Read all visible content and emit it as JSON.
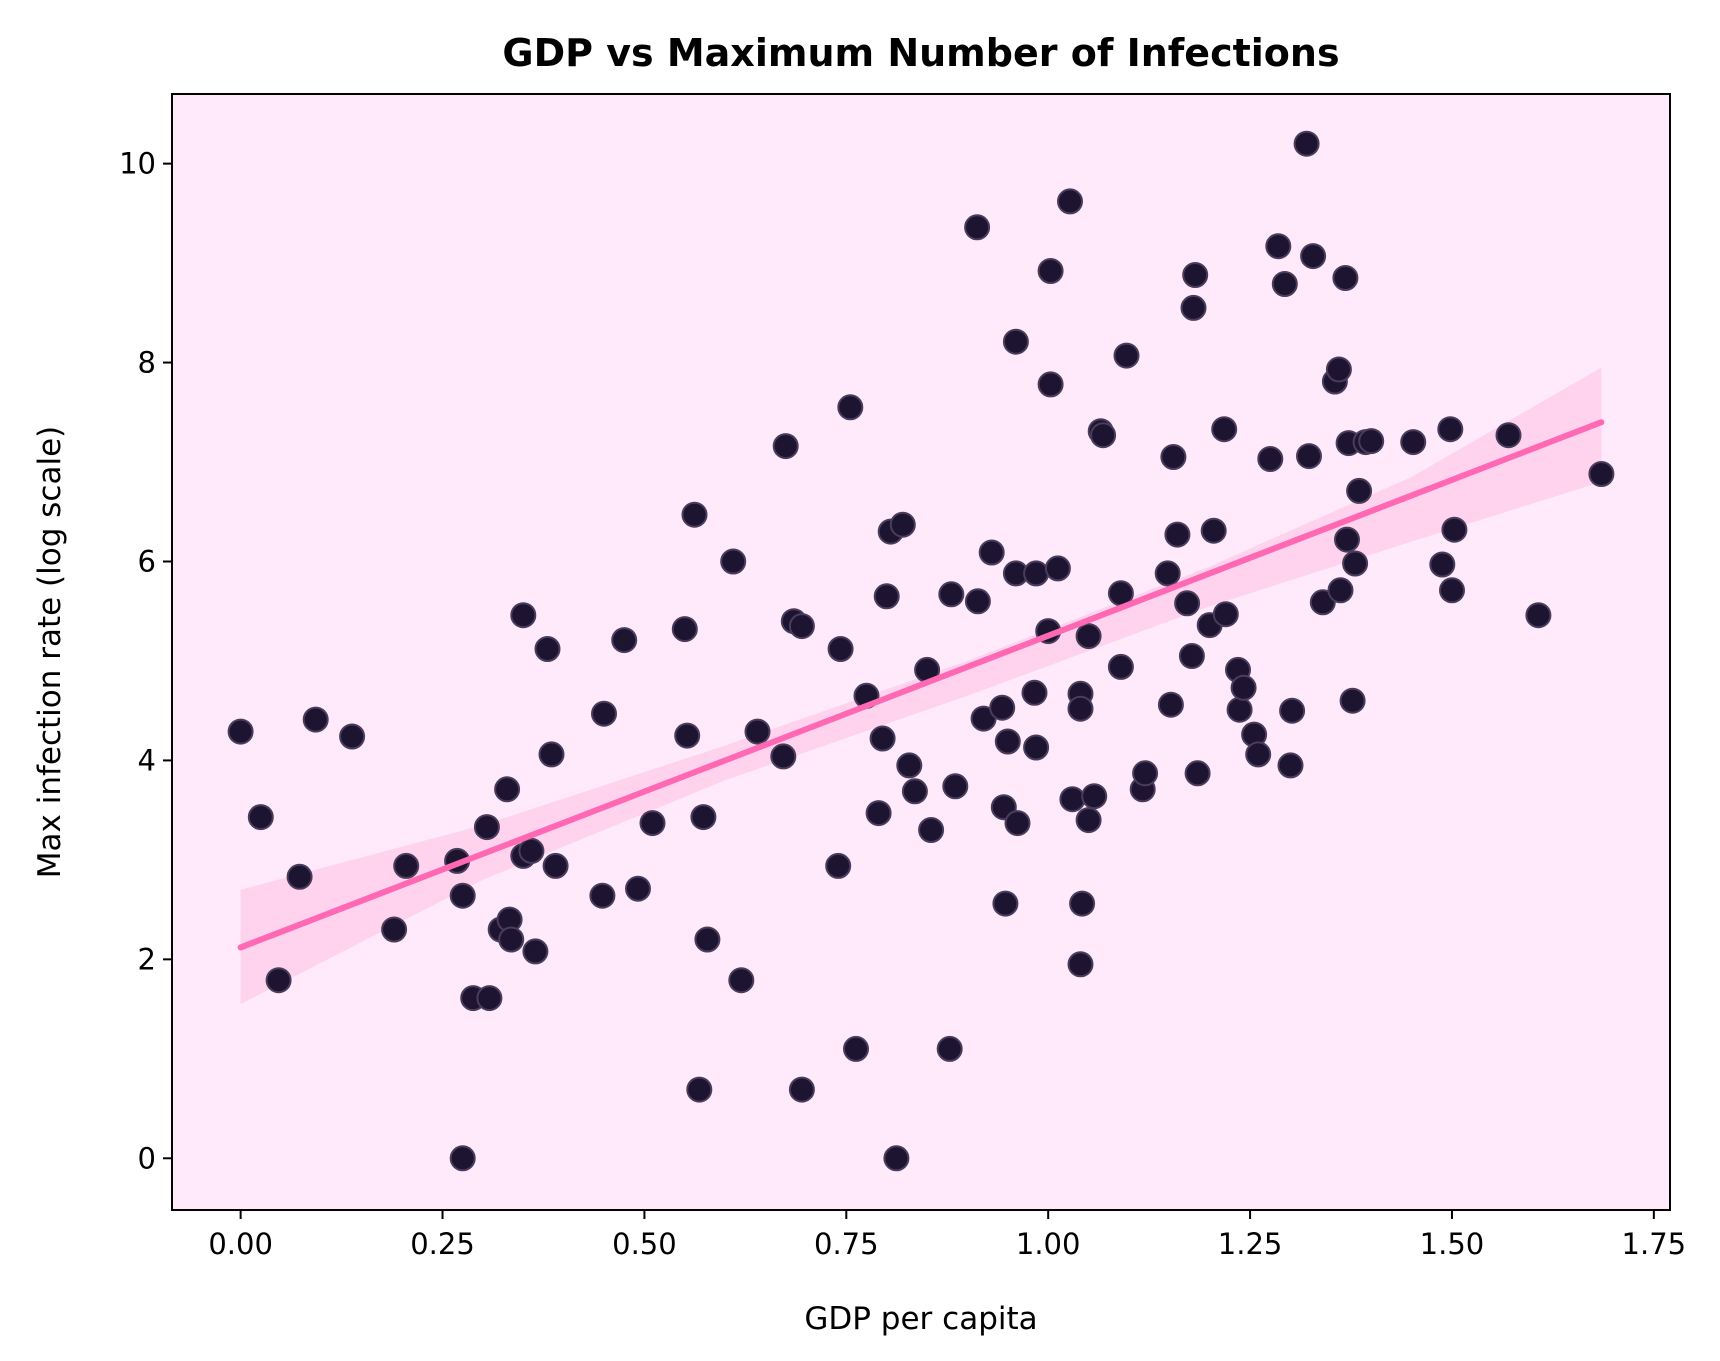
{
  "chart_data": {
    "type": "scatter",
    "title": "GDP vs Maximum Number of Infections",
    "xlabel": "GDP per capita",
    "ylabel": "Max infection rate (log scale)",
    "xlim": [
      -0.085,
      1.77
    ],
    "ylim": [
      -0.52,
      10.7
    ],
    "xticks": [
      0.0,
      0.25,
      0.5,
      0.75,
      1.0,
      1.25,
      1.5,
      1.75
    ],
    "xtick_labels": [
      "0.00",
      "0.25",
      "0.50",
      "0.75",
      "1.00",
      "1.25",
      "1.50",
      "1.75"
    ],
    "yticks": [
      0,
      2,
      4,
      6,
      8,
      10
    ],
    "ytick_labels": [
      "0",
      "2",
      "4",
      "6",
      "8",
      "10"
    ],
    "grid": false,
    "colors": {
      "background": "#ffeafc",
      "point": "#1c1430",
      "point_edge": "#4a3d5c",
      "regression_line": "#ff69b4",
      "confidence_band": "#ffb7de"
    },
    "regression": {
      "x": [
        0.0,
        1.685
      ],
      "y": [
        2.12,
        7.4
      ]
    },
    "confidence_band": [
      {
        "x": 0.0,
        "lower": 1.55,
        "upper": 2.7
      },
      {
        "x": 0.3,
        "lower": 2.8,
        "upper": 3.35
      },
      {
        "x": 0.6,
        "lower": 3.8,
        "upper": 4.15
      },
      {
        "x": 0.9,
        "lower": 4.65,
        "upper": 5.0
      },
      {
        "x": 1.2,
        "lower": 5.55,
        "upper": 5.95
      },
      {
        "x": 1.45,
        "lower": 6.2,
        "upper": 6.85
      },
      {
        "x": 1.685,
        "lower": 6.8,
        "upper": 7.95
      }
    ],
    "points": [
      {
        "x": 0.0,
        "y": 4.29
      },
      {
        "x": 0.025,
        "y": 3.43
      },
      {
        "x": 0.047,
        "y": 1.79
      },
      {
        "x": 0.073,
        "y": 2.83
      },
      {
        "x": 0.093,
        "y": 4.41
      },
      {
        "x": 0.138,
        "y": 4.24
      },
      {
        "x": 0.19,
        "y": 2.3
      },
      {
        "x": 0.205,
        "y": 2.94
      },
      {
        "x": 0.268,
        "y": 2.99
      },
      {
        "x": 0.275,
        "y": 2.64
      },
      {
        "x": 0.275,
        "y": 0.0
      },
      {
        "x": 0.288,
        "y": 1.61
      },
      {
        "x": 0.305,
        "y": 3.33
      },
      {
        "x": 0.308,
        "y": 1.61
      },
      {
        "x": 0.322,
        "y": 2.3
      },
      {
        "x": 0.33,
        "y": 3.71
      },
      {
        "x": 0.333,
        "y": 2.4
      },
      {
        "x": 0.335,
        "y": 2.2
      },
      {
        "x": 0.35,
        "y": 5.46
      },
      {
        "x": 0.35,
        "y": 3.04
      },
      {
        "x": 0.36,
        "y": 3.09
      },
      {
        "x": 0.365,
        "y": 2.08
      },
      {
        "x": 0.38,
        "y": 5.12
      },
      {
        "x": 0.385,
        "y": 4.06
      },
      {
        "x": 0.39,
        "y": 2.94
      },
      {
        "x": 0.448,
        "y": 2.64
      },
      {
        "x": 0.45,
        "y": 4.47
      },
      {
        "x": 0.475,
        "y": 5.21
      },
      {
        "x": 0.492,
        "y": 2.71
      },
      {
        "x": 0.51,
        "y": 3.37
      },
      {
        "x": 0.55,
        "y": 5.32
      },
      {
        "x": 0.553,
        "y": 4.25
      },
      {
        "x": 0.562,
        "y": 6.47
      },
      {
        "x": 0.568,
        "y": 0.69
      },
      {
        "x": 0.573,
        "y": 3.43
      },
      {
        "x": 0.578,
        "y": 2.2
      },
      {
        "x": 0.61,
        "y": 6.0
      },
      {
        "x": 0.62,
        "y": 1.79
      },
      {
        "x": 0.64,
        "y": 4.29
      },
      {
        "x": 0.672,
        "y": 4.04
      },
      {
        "x": 0.675,
        "y": 7.16
      },
      {
        "x": 0.685,
        "y": 5.4
      },
      {
        "x": 0.695,
        "y": 5.35
      },
      {
        "x": 0.695,
        "y": 0.69
      },
      {
        "x": 0.74,
        "y": 2.94
      },
      {
        "x": 0.743,
        "y": 5.12
      },
      {
        "x": 0.755,
        "y": 7.55
      },
      {
        "x": 0.762,
        "y": 1.1
      },
      {
        "x": 0.775,
        "y": 4.65
      },
      {
        "x": 0.79,
        "y": 3.47
      },
      {
        "x": 0.795,
        "y": 4.22
      },
      {
        "x": 0.8,
        "y": 5.65
      },
      {
        "x": 0.805,
        "y": 6.3
      },
      {
        "x": 0.812,
        "y": 0.0
      },
      {
        "x": 0.82,
        "y": 6.37
      },
      {
        "x": 0.828,
        "y": 3.95
      },
      {
        "x": 0.835,
        "y": 3.69
      },
      {
        "x": 0.85,
        "y": 4.91
      },
      {
        "x": 0.855,
        "y": 3.3
      },
      {
        "x": 0.878,
        "y": 1.1
      },
      {
        "x": 0.88,
        "y": 5.67
      },
      {
        "x": 0.885,
        "y": 3.74
      },
      {
        "x": 0.912,
        "y": 9.36
      },
      {
        "x": 0.913,
        "y": 5.6
      },
      {
        "x": 0.92,
        "y": 4.42
      },
      {
        "x": 0.93,
        "y": 6.09
      },
      {
        "x": 0.943,
        "y": 4.53
      },
      {
        "x": 0.945,
        "y": 3.53
      },
      {
        "x": 0.947,
        "y": 2.56
      },
      {
        "x": 0.95,
        "y": 4.19
      },
      {
        "x": 0.96,
        "y": 8.21
      },
      {
        "x": 0.96,
        "y": 5.88
      },
      {
        "x": 0.962,
        "y": 3.37
      },
      {
        "x": 0.983,
        "y": 4.68
      },
      {
        "x": 0.985,
        "y": 5.88
      },
      {
        "x": 0.985,
        "y": 4.13
      },
      {
        "x": 1.0,
        "y": 5.3
      },
      {
        "x": 1.003,
        "y": 8.92
      },
      {
        "x": 1.003,
        "y": 7.78
      },
      {
        "x": 1.012,
        "y": 5.93
      },
      {
        "x": 1.027,
        "y": 9.62
      },
      {
        "x": 1.03,
        "y": 3.61
      },
      {
        "x": 1.04,
        "y": 1.95
      },
      {
        "x": 1.04,
        "y": 4.67
      },
      {
        "x": 1.04,
        "y": 4.52
      },
      {
        "x": 1.042,
        "y": 2.56
      },
      {
        "x": 1.05,
        "y": 5.25
      },
      {
        "x": 1.05,
        "y": 3.4
      },
      {
        "x": 1.057,
        "y": 3.64
      },
      {
        "x": 1.065,
        "y": 7.31
      },
      {
        "x": 1.068,
        "y": 7.27
      },
      {
        "x": 1.09,
        "y": 5.68
      },
      {
        "x": 1.09,
        "y": 4.94
      },
      {
        "x": 1.097,
        "y": 8.07
      },
      {
        "x": 1.117,
        "y": 3.71
      },
      {
        "x": 1.12,
        "y": 3.87
      },
      {
        "x": 1.148,
        "y": 5.88
      },
      {
        "x": 1.152,
        "y": 4.56
      },
      {
        "x": 1.155,
        "y": 7.05
      },
      {
        "x": 1.16,
        "y": 6.27
      },
      {
        "x": 1.172,
        "y": 5.58
      },
      {
        "x": 1.178,
        "y": 5.05
      },
      {
        "x": 1.18,
        "y": 8.55
      },
      {
        "x": 1.182,
        "y": 8.88
      },
      {
        "x": 1.185,
        "y": 3.87
      },
      {
        "x": 1.2,
        "y": 5.36
      },
      {
        "x": 1.205,
        "y": 6.31
      },
      {
        "x": 1.218,
        "y": 7.33
      },
      {
        "x": 1.22,
        "y": 5.47
      },
      {
        "x": 1.235,
        "y": 4.91
      },
      {
        "x": 1.237,
        "y": 4.51
      },
      {
        "x": 1.242,
        "y": 4.73
      },
      {
        "x": 1.255,
        "y": 4.26
      },
      {
        "x": 1.26,
        "y": 4.06
      },
      {
        "x": 1.275,
        "y": 7.03
      },
      {
        "x": 1.285,
        "y": 9.17
      },
      {
        "x": 1.293,
        "y": 8.79
      },
      {
        "x": 1.3,
        "y": 3.95
      },
      {
        "x": 1.302,
        "y": 4.5
      },
      {
        "x": 1.32,
        "y": 10.2
      },
      {
        "x": 1.323,
        "y": 7.06
      },
      {
        "x": 1.328,
        "y": 9.07
      },
      {
        "x": 1.34,
        "y": 5.59
      },
      {
        "x": 1.355,
        "y": 7.81
      },
      {
        "x": 1.36,
        "y": 7.93
      },
      {
        "x": 1.362,
        "y": 5.71
      },
      {
        "x": 1.368,
        "y": 8.85
      },
      {
        "x": 1.37,
        "y": 6.22
      },
      {
        "x": 1.372,
        "y": 7.19
      },
      {
        "x": 1.377,
        "y": 4.6
      },
      {
        "x": 1.38,
        "y": 5.98
      },
      {
        "x": 1.385,
        "y": 6.71
      },
      {
        "x": 1.393,
        "y": 7.2
      },
      {
        "x": 1.4,
        "y": 7.21
      },
      {
        "x": 1.452,
        "y": 7.2
      },
      {
        "x": 1.488,
        "y": 5.97
      },
      {
        "x": 1.498,
        "y": 7.33
      },
      {
        "x": 1.5,
        "y": 5.71
      },
      {
        "x": 1.503,
        "y": 6.32
      },
      {
        "x": 1.57,
        "y": 7.27
      },
      {
        "x": 1.607,
        "y": 5.46
      },
      {
        "x": 1.685,
        "y": 6.88
      }
    ]
  }
}
